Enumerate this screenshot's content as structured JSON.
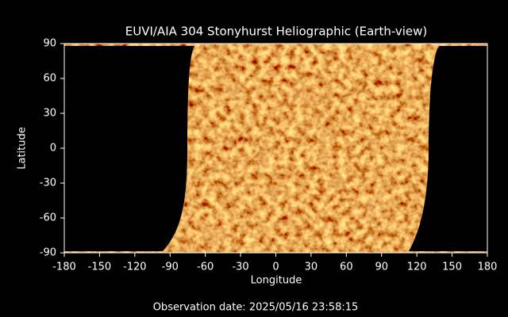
{
  "chart_data": {
    "type": "map",
    "title": "EUVI/AIA 304 Stonyhurst Heliographic (Earth-view)",
    "x_label": "Longitude",
    "y_label": "Latitude",
    "xlim": [
      -180,
      180
    ],
    "ylim": [
      -90,
      90
    ],
    "xticks": [
      -180,
      -150,
      -120,
      -90,
      -60,
      -30,
      0,
      30,
      60,
      90,
      120,
      150,
      180
    ],
    "yticks": [
      -90,
      -60,
      -30,
      0,
      30,
      60,
      90
    ],
    "footer": "Observation date: 2025/05/16 23:58:15"
  }
}
